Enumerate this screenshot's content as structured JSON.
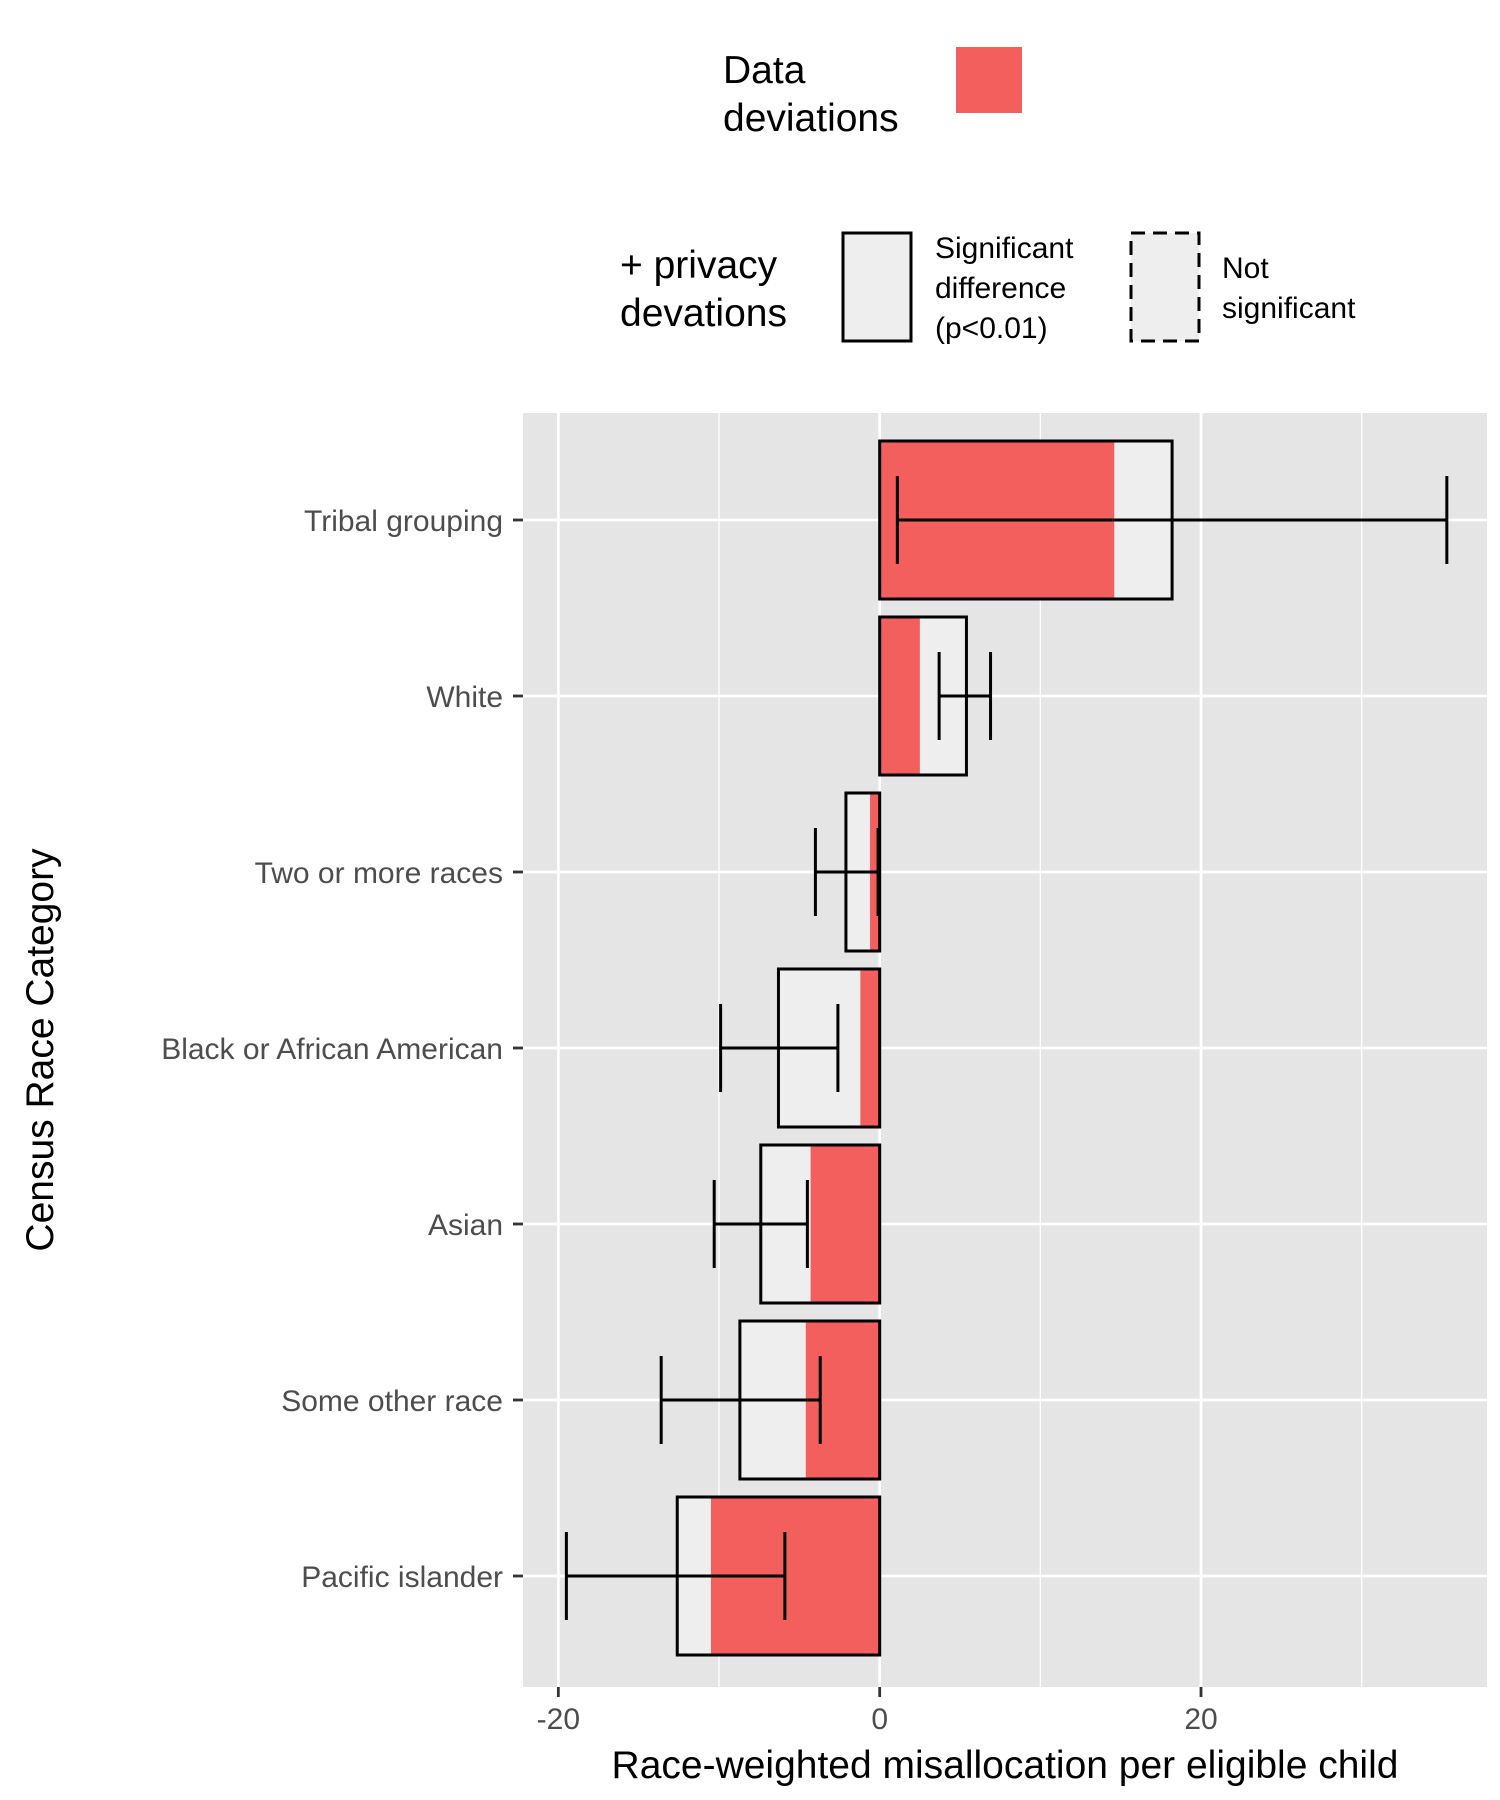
{
  "colors": {
    "panel": "#e5e5e5",
    "grid": "#ffffff",
    "data_deviation_fill": "#f25f5c",
    "privacy_fill": "#eeeeee",
    "outline": "#000000"
  },
  "legend": {
    "data_title": [
      "Data",
      "deviations"
    ],
    "privacy_title": [
      "+ privacy",
      "devations"
    ],
    "significant_label": [
      "Significant",
      "difference",
      "(p<0.01)"
    ],
    "not_significant_label": [
      "Not",
      "significant"
    ]
  },
  "chart_data": {
    "type": "bar",
    "orientation": "horizontal",
    "xlabel": "Race-weighted misallocation per eligible child",
    "ylabel": "Census Race Category",
    "xlim": [
      -22.2,
      37.8
    ],
    "xticks": [
      -20,
      0,
      20
    ],
    "xtick_labels": [
      "-20",
      "0",
      "20"
    ],
    "grid": true,
    "categories": [
      "Tribal grouping",
      "White",
      "Two or more races",
      "Black or African American",
      "Asian",
      "Some other race",
      "Pacific islander"
    ],
    "series": [
      {
        "name": "Data deviations",
        "values": [
          14.6,
          2.5,
          -0.6,
          -1.2,
          -4.3,
          -4.6,
          -10.5
        ]
      },
      {
        "name": "+ privacy devations",
        "values": [
          18.2,
          5.4,
          -2.1,
          -6.3,
          -7.4,
          -8.7,
          -12.6
        ],
        "significant": [
          true,
          true,
          true,
          true,
          true,
          true,
          true
        ]
      }
    ],
    "error_bars": [
      [
        1.1,
        35.3
      ],
      [
        3.7,
        6.9
      ],
      [
        -4.0,
        -0.1
      ],
      [
        -9.9,
        -2.6
      ],
      [
        -10.3,
        -4.5
      ],
      [
        -13.6,
        -3.7
      ],
      [
        -19.5,
        -5.9
      ]
    ]
  }
}
